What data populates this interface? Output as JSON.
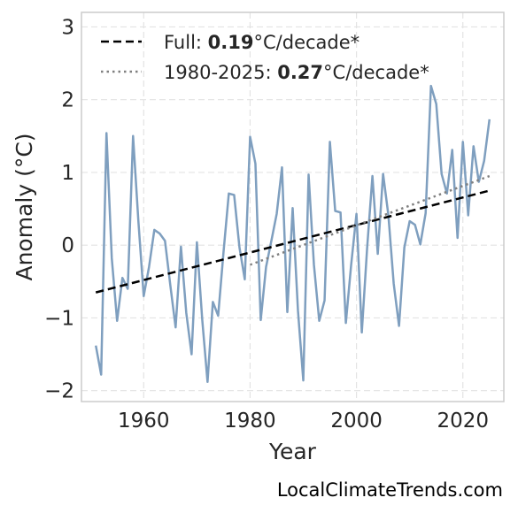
{
  "chart_data": {
    "type": "line",
    "xlabel": "Year",
    "ylabel": "Anomaly (°C)",
    "xlim": [
      1948.3,
      2027.7
    ],
    "ylim": [
      -2.15,
      3.2
    ],
    "x_ticks": [
      1960,
      1980,
      2000,
      2020
    ],
    "x_tick_labels": [
      "1960",
      "1980",
      "2000",
      "2020"
    ],
    "y_ticks": [
      -2,
      -1,
      0,
      1,
      2,
      3
    ],
    "y_tick_labels": [
      "−2",
      "−1",
      "0",
      "1",
      "2",
      "3"
    ],
    "grid": true,
    "legend_position": "top-left",
    "series": [
      {
        "style": "solid",
        "color": "#7f9fbf",
        "x": [
          1951,
          1952,
          1953,
          1954,
          1955,
          1956,
          1957,
          1958,
          1959,
          1960,
          1961,
          1962,
          1963,
          1964,
          1965,
          1966,
          1967,
          1968,
          1969,
          1970,
          1971,
          1972,
          1973,
          1974,
          1975,
          1976,
          1977,
          1978,
          1979,
          1980,
          1981,
          1982,
          1983,
          1984,
          1985,
          1986,
          1987,
          1988,
          1989,
          1990,
          1991,
          1992,
          1993,
          1994,
          1995,
          1996,
          1997,
          1998,
          1999,
          2000,
          2001,
          2002,
          2003,
          2004,
          2005,
          2006,
          2007,
          2008,
          2009,
          2010,
          2011,
          2012,
          2013,
          2014,
          2015,
          2016,
          2017,
          2018,
          2019,
          2020,
          2021,
          2022,
          2023,
          2024,
          2025
        ],
        "values": [
          -1.38,
          -1.78,
          1.54,
          -0.18,
          -1.04,
          -0.45,
          -0.6,
          1.5,
          0.33,
          -0.7,
          -0.3,
          0.21,
          0.16,
          0.06,
          -0.55,
          -1.13,
          -0.02,
          -0.93,
          -1.5,
          0.04,
          -1.02,
          -1.88,
          -0.78,
          -0.97,
          -0.1,
          0.71,
          0.69,
          -0.03,
          -0.47,
          1.49,
          1.12,
          -1.03,
          -0.3,
          0.06,
          0.43,
          1.07,
          -0.92,
          0.51,
          -0.9,
          -1.86,
          0.97,
          -0.27,
          -1.04,
          -0.76,
          1.42,
          0.47,
          0.45,
          -1.07,
          -0.27,
          0.43,
          -1.2,
          -0.04,
          0.95,
          -0.12,
          0.98,
          0.41,
          -0.53,
          -1.11,
          -0.03,
          0.33,
          0.28,
          0.01,
          0.44,
          2.19,
          1.94,
          0.98,
          0.71,
          1.31,
          0.1,
          1.42,
          0.41,
          1.36,
          0.87,
          1.16,
          1.73
        ]
      },
      {
        "style": "dashed",
        "color": "#000000",
        "x": [
          1951,
          2025
        ],
        "values": [
          -0.65,
          0.75
        ]
      },
      {
        "style": "dotted",
        "color": "#808080",
        "x": [
          1980,
          2025
        ],
        "values": [
          -0.27,
          0.95
        ]
      }
    ],
    "legend": [
      {
        "style": "dashed",
        "color": "#000000",
        "prefix": "Full: ",
        "value": "0.19",
        "suffix": "°C/decade*"
      },
      {
        "style": "dotted",
        "color": "#808080",
        "prefix": "1980-2025: ",
        "value": "0.27",
        "suffix": "°C/decade*"
      }
    ]
  },
  "footer": {
    "source": "LocalClimateTrends.com"
  }
}
